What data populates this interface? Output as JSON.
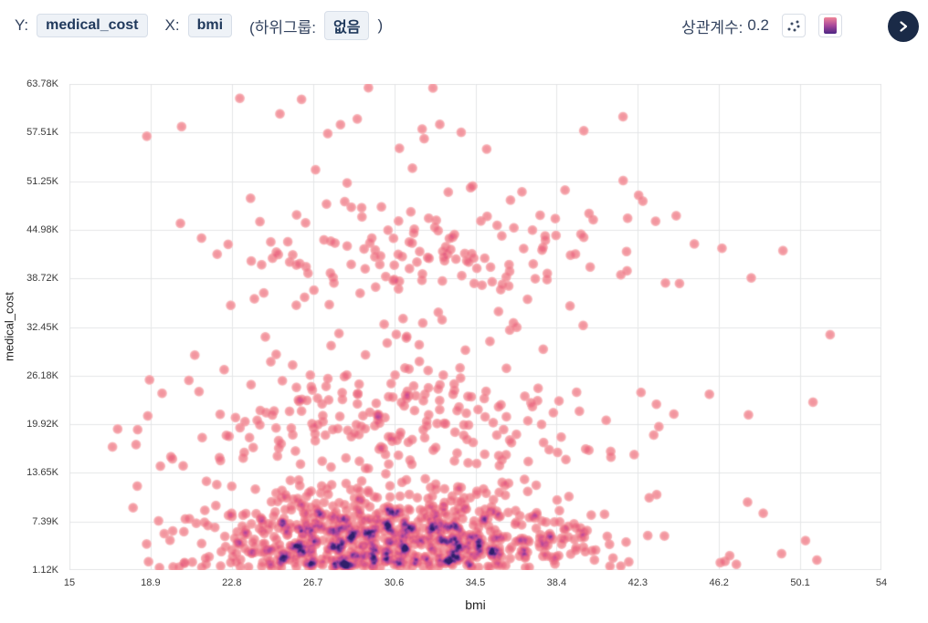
{
  "header": {
    "y_prefix": "Y:",
    "y_value": "medical_cost",
    "x_prefix": "X:",
    "x_value": "bmi",
    "subgroup_prefix": "(하위그룹:",
    "subgroup_value": "없음",
    "subgroup_suffix": ")",
    "correlation_label": "상관계수:",
    "correlation_value": "0.2"
  },
  "colors": {
    "chip_bg": "#eef2f7",
    "chip_border": "#d7dee8",
    "chip_text": "#20395c",
    "header_text": "#33435f",
    "expand_button_bg": "#1a2a47",
    "grid": "#e5e6e8",
    "tick_text": "#3a3a3a",
    "scatter_icon_dot": "#3c4a63",
    "colormap_icon_gradient": [
      "#f08598",
      "#a8489b",
      "#4c2583"
    ]
  },
  "chart_data": {
    "type": "scatter",
    "title": "",
    "xlabel": "bmi",
    "ylabel": "medical_cost",
    "x_range": [
      15,
      54
    ],
    "y_range": [
      1120,
      63780
    ],
    "x_tick_values": [
      15,
      18.9,
      22.8,
      26.7,
      30.6,
      34.5,
      38.4,
      42.3,
      46.2,
      50.1,
      54
    ],
    "x_tick_labels": [
      "15",
      "18.9",
      "22.8",
      "26.7",
      "30.6",
      "34.5",
      "38.4",
      "42.3",
      "46.2",
      "50.1",
      "54"
    ],
    "y_tick_values": [
      1120,
      7386,
      13652,
      19918,
      26184,
      32450,
      38716,
      44982,
      51248,
      57514,
      63780
    ],
    "y_tick_labels": [
      "1.12K",
      "7.39K",
      "13.65K",
      "19.92K",
      "26.18K",
      "32.45K",
      "38.72K",
      "44.98K",
      "51.25K",
      "57.51K",
      "63.78K"
    ],
    "grid": true,
    "legend": false,
    "correlation": 0.2,
    "n_points_approx": 1332,
    "density_model": {
      "seed": 42,
      "blob_radius_px": 6,
      "blob_alpha": 0.18,
      "alpha_ramp": 0.06,
      "clusters": [
        {
          "n": 900,
          "bmi_mean": 30.2,
          "bmi_sd": 4.8,
          "bmi_clip": [
            15.3,
            53.8
          ],
          "cost_mean": 5200,
          "cost_sd": 3400,
          "cost_clip": [
            1400,
            14800
          ]
        },
        {
          "n": 230,
          "bmi_mean": 30.5,
          "bmi_sd": 5.8,
          "bmi_clip": [
            15.3,
            53.0
          ],
          "cost_mean": 20500,
          "cost_sd": 4300,
          "cost_clip": [
            14200,
            31500
          ]
        },
        {
          "n": 170,
          "bmi_mean": 32.5,
          "bmi_sd": 5.0,
          "bmi_clip": [
            16.0,
            53.5
          ],
          "cost_mean": 41500,
          "cost_sd": 5200,
          "cost_clip": [
            30500,
            54500
          ]
        },
        {
          "n": 18,
          "bmi_mean": 31.5,
          "bmi_sd": 6.5,
          "bmi_clip": [
            17.0,
            52.0
          ],
          "cost_mean": 58000,
          "cost_sd": 3200,
          "cost_clip": [
            54000,
            63700
          ]
        },
        {
          "n": 8,
          "bmi_mean": 49.0,
          "bmi_sd": 2.5,
          "bmi_clip": [
            44.0,
            53.8
          ],
          "cost_mean": 6000,
          "cost_sd": 4000,
          "cost_clip": [
            1400,
            16000
          ]
        },
        {
          "n": 6,
          "bmi_mean": 48.0,
          "bmi_sd": 3.0,
          "bmi_clip": [
            43.0,
            53.5
          ],
          "cost_mean": 30000,
          "cost_sd": 12000,
          "cost_clip": [
            3000,
            46000
          ]
        }
      ],
      "colormap": [
        {
          "t": 0.0,
          "color": "#fcd9da"
        },
        {
          "t": 0.08,
          "color": "#f7adb2"
        },
        {
          "t": 0.2,
          "color": "#f18a95"
        },
        {
          "t": 0.35,
          "color": "#e96680"
        },
        {
          "t": 0.5,
          "color": "#d44f8c"
        },
        {
          "t": 0.65,
          "color": "#a83e99"
        },
        {
          "t": 0.78,
          "color": "#6f2f92"
        },
        {
          "t": 0.9,
          "color": "#47217c"
        },
        {
          "t": 1.0,
          "color": "#2a1866"
        }
      ]
    }
  }
}
